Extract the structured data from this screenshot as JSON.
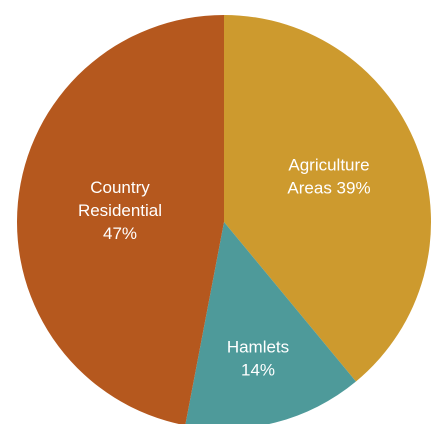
{
  "chart_data": {
    "type": "pie",
    "slices": [
      {
        "label": "Agriculture Areas",
        "value": 39,
        "text_lines": [
          "Agriculture",
          "Areas 39%"
        ],
        "color": "#CD9A2E"
      },
      {
        "label": "Hamlets",
        "value": 14,
        "text_lines": [
          "Hamlets",
          "14%"
        ],
        "color": "#4E9A9A"
      },
      {
        "label": "Country Residential",
        "value": 47,
        "text_lines": [
          "Country",
          "Residential",
          "47%"
        ],
        "color": "#B5581E"
      }
    ]
  }
}
